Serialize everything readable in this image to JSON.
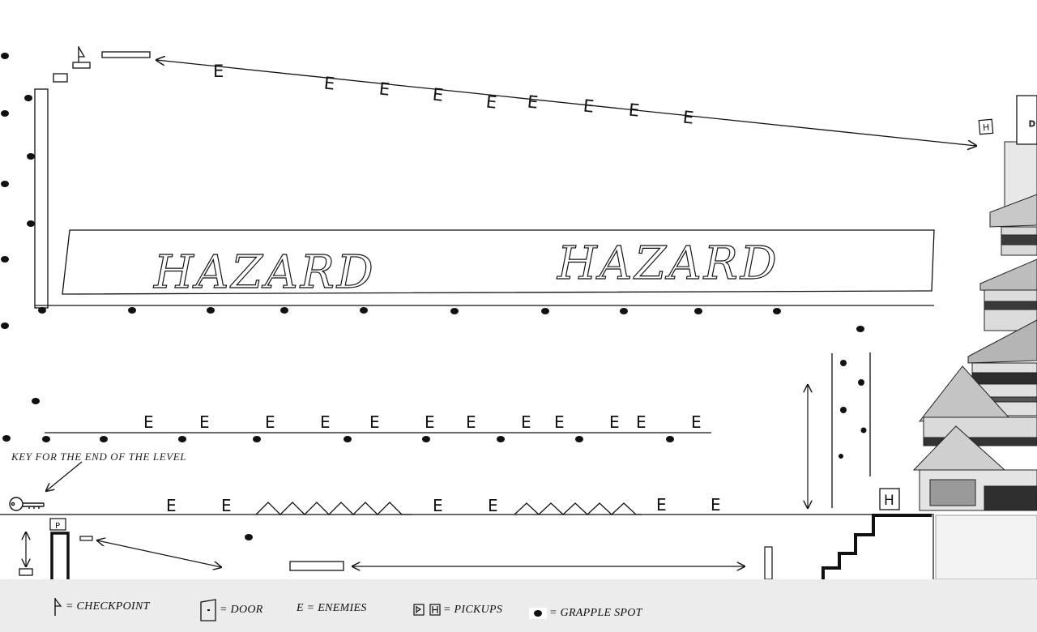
{
  "hazard_labels": [
    "HAZARD",
    "HAZARD"
  ],
  "enemy_letter": "E",
  "key_note": "KEY FOR THE END OF THE LEVEL",
  "pickup_letter": "H",
  "door_letter": "D",
  "pickup_p_letter": "P",
  "legend": {
    "checkpoint": "= CHECKPOINT",
    "door": "= DOOR",
    "enemies": "E = ENEMIES",
    "pickups": "= PICKUPS",
    "grapple": "= GRAPPLE SPOT"
  },
  "colors": {
    "ink": "#111111",
    "legend_bg": "#ececec",
    "castle": "#2a2a2a"
  },
  "icons": [
    "checkpoint-flag-icon",
    "door-icon",
    "pickup-icon",
    "grapple-spot-icon",
    "key-icon",
    "castle-image"
  ]
}
